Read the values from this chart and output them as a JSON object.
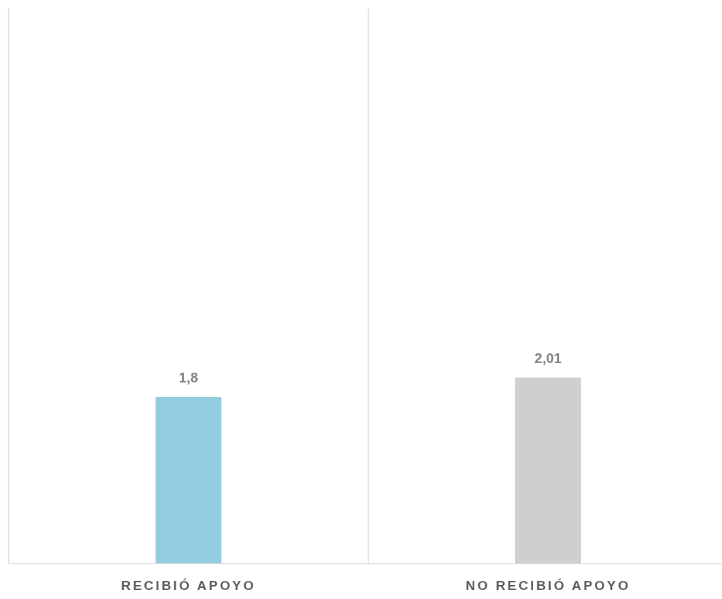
{
  "chart_data": {
    "type": "bar",
    "categories": [
      "RECIBIÓ APOYO",
      "NO RECIBIÓ APOYO"
    ],
    "values": [
      1.8,
      2.01
    ],
    "colors": [
      "#92cddf",
      "#d0cece"
    ],
    "value_labels": [
      "1,8",
      "2,01"
    ],
    "tick_labels": "x",
    "grid": "x"
  }
}
